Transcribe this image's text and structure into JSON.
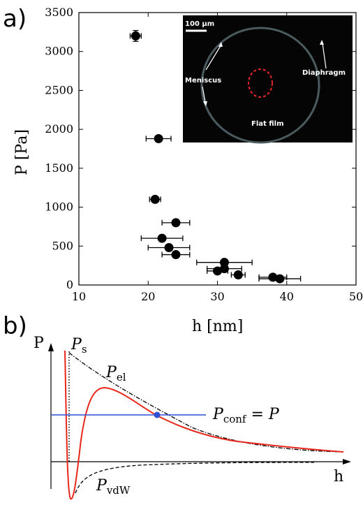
{
  "panel_a_label": "a)",
  "panel_b_label": "b)",
  "inset": {
    "scalebar_label": "100 µm",
    "meniscus_label": "Meniscus",
    "diaphragm_label": "Diaphragm",
    "flatfilm_label": "Flat film"
  },
  "chart_data": [
    {
      "type": "scatter",
      "xlabel": "h [nm]",
      "ylabel": "P [Pa]",
      "xlim": [
        10,
        50
      ],
      "ylim": [
        0,
        3500
      ],
      "xticks": [
        10,
        20,
        30,
        40,
        50
      ],
      "yticks": [
        0,
        500,
        1000,
        1500,
        2000,
        2500,
        3000,
        3500
      ],
      "grid": false,
      "points": [
        {
          "x": 18.2,
          "y": 3200,
          "xerr": 0.8,
          "yerr": 70
        },
        {
          "x": 21.5,
          "y": 1880,
          "xerr": 1.8,
          "yerr": 0
        },
        {
          "x": 21.0,
          "y": 1100,
          "xerr": 0.8,
          "yerr": 0
        },
        {
          "x": 24.0,
          "y": 800,
          "xerr": 2.0,
          "yerr": 0
        },
        {
          "x": 22.0,
          "y": 600,
          "xerr": 3.0,
          "yerr": 0
        },
        {
          "x": 23.0,
          "y": 480,
          "xerr": 3.0,
          "yerr": 0
        },
        {
          "x": 24.0,
          "y": 390,
          "xerr": 2.0,
          "yerr": 0
        },
        {
          "x": 31.0,
          "y": 290,
          "xerr": 4.0,
          "yerr": 0
        },
        {
          "x": 31.0,
          "y": 210,
          "xerr": 2.5,
          "yerr": 0
        },
        {
          "x": 30.0,
          "y": 180,
          "xerr": 1.5,
          "yerr": 0
        },
        {
          "x": 33.0,
          "y": 130,
          "xerr": 1.0,
          "yerr": 0
        },
        {
          "x": 38.0,
          "y": 100,
          "xerr": 2.0,
          "yerr": 0
        },
        {
          "x": 39.0,
          "y": 80,
          "xerr": 3.0,
          "yerr": 0
        }
      ]
    },
    {
      "type": "line",
      "xlabel": "h",
      "ylabel": "P",
      "series": [
        {
          "name": "P_s",
          "style": "dotted",
          "color": "#000000"
        },
        {
          "name": "P_el",
          "style": "dash-dot",
          "color": "#000000"
        },
        {
          "name": "P_vdW",
          "style": "dashed",
          "color": "#000000"
        },
        {
          "name": "total",
          "style": "solid",
          "color": "#e8271b"
        },
        {
          "name": "P_conf = P",
          "style": "solid",
          "color": "#2f4fd6"
        }
      ],
      "labels": {
        "p_s_main": "P",
        "p_s_sub": "s",
        "p_el_main": "P",
        "p_el_sub": "el",
        "p_vdw_main": "P",
        "p_vdw_sub": "vdW",
        "p_conf_main": "P",
        "p_conf_sub": "conf",
        "p_conf_rest": " = P"
      }
    }
  ]
}
